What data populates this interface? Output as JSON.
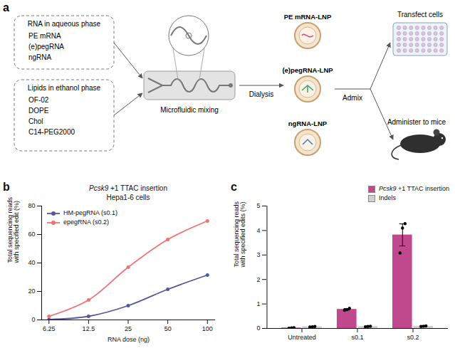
{
  "diagram": {
    "panel": "a",
    "inputs": [
      {
        "title": "RNA in aqueous phase",
        "items": [
          "PE mRNA",
          "(e)pegRNA",
          "ngRNA"
        ]
      },
      {
        "title": "Lipids in ethanol phase",
        "items": [
          "OF-02",
          "DOPE",
          "Chol",
          "C14-PEG2000"
        ]
      }
    ],
    "mixer": "Microfluidic mixing",
    "step1": "Dialysis",
    "products": [
      "PE mRNA-LNP",
      "(e)pegRNA-LNP",
      "ngRNA-LNP"
    ],
    "step2": "Admix",
    "outputs": [
      "Transfect cells",
      "Administer to mice"
    ]
  },
  "chart_data": [
    {
      "panel": "b",
      "type": "line",
      "title": "Pcsk9 +1 TTAC insertion",
      "subtitle": "Hepa1-6 cells",
      "x_label": "RNA dose (ng)",
      "y_label": "Total sequencing reads with specified edit (%)",
      "x": [
        6.25,
        12.5,
        25,
        50,
        100
      ],
      "log": "x",
      "xlim": [
        5.5,
        115
      ],
      "xticks": [
        6.25,
        12.5,
        25,
        50,
        100
      ],
      "ylim": [
        0,
        80
      ],
      "yticks": [
        0,
        20,
        40,
        60,
        80
      ],
      "series": [
        {
          "name": "HM-pegRNA (s0.1)",
          "color": "#55579e",
          "values": [
            0.3,
            2.5,
            10,
            21.5,
            31.5
          ]
        },
        {
          "name": "epegRNA (s0.2)",
          "color": "#f07272",
          "values": [
            2.5,
            14,
            37,
            56.5,
            69.5
          ]
        }
      ],
      "marker": "circle",
      "line_style": "solid",
      "legend": "top-left",
      "grid": false
    },
    {
      "panel": "c",
      "type": "bar",
      "y_label": "Total sequencing reads with specified edits (%)",
      "categories": [
        "Untreated",
        "s0.1",
        "s0.2"
      ],
      "ylim": [
        0,
        5
      ],
      "yticks": [
        0,
        1,
        2,
        3,
        4,
        5
      ],
      "series": [
        {
          "name": "Pcsk9 +1 TTAC insertion",
          "color": "#c0488c",
          "values": [
            0.02,
            0.78,
            3.82
          ],
          "errors": [
            0.01,
            0.03,
            0.45
          ],
          "points": [
            [
              0.01,
              0.02,
              0.03
            ],
            [
              0.74,
              0.77,
              0.82
            ],
            [
              3.08,
              4.1,
              4.28
            ]
          ]
        },
        {
          "name": "Indels",
          "color": "#cfcfcf",
          "values": [
            0.07,
            0.08,
            0.09
          ],
          "errors": [
            0.01,
            0.01,
            0.01
          ],
          "points": [
            [
              0.06,
              0.07,
              0.08
            ],
            [
              0.07,
              0.08,
              0.09
            ],
            [
              0.08,
              0.09,
              0.1
            ]
          ]
        }
      ],
      "legend": "top-right",
      "grid": false
    }
  ]
}
